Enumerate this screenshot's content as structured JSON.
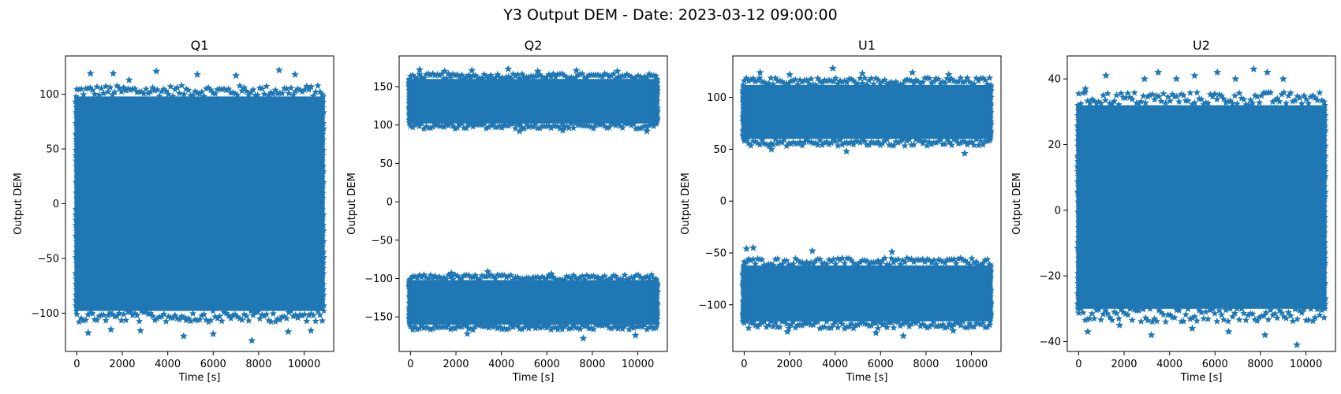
{
  "figure": {
    "title": "Y3 Output DEM - Date: 2023-03-12 09:00:00"
  },
  "chart_data": [
    {
      "type": "scatter",
      "title": "Q1",
      "xlabel": "Time [s]",
      "ylabel": "Output DEM",
      "marker": "star",
      "color": "#1f77b4",
      "xlim": [
        -500,
        11300
      ],
      "ylim": [
        -135,
        135
      ],
      "xticks": [
        0,
        2000,
        4000,
        6000,
        8000,
        10000
      ],
      "yticks": [
        -100,
        -50,
        0,
        50,
        100
      ],
      "grid": false,
      "series": [
        {
          "x_range": [
            0,
            10800
          ],
          "bands": [
            {
              "core": [
                -98,
                98
              ],
              "edge_low": -108,
              "edge_high": 108
            }
          ],
          "outliers": [
            [
              600,
              119
            ],
            [
              1600,
              119
            ],
            [
              2300,
              113
            ],
            [
              3500,
              121
            ],
            [
              5300,
              118
            ],
            [
              7000,
              117
            ],
            [
              8900,
              122
            ],
            [
              9600,
              118
            ],
            [
              500,
              -118
            ],
            [
              1500,
              -115
            ],
            [
              2800,
              -116
            ],
            [
              4700,
              -121
            ],
            [
              6000,
              -119
            ],
            [
              7700,
              -125
            ],
            [
              9300,
              -117
            ],
            [
              10300,
              -116
            ]
          ]
        }
      ]
    },
    {
      "type": "scatter",
      "title": "Q2",
      "xlabel": "Time [s]",
      "ylabel": "Output DEM",
      "marker": "star",
      "color": "#1f77b4",
      "xlim": [
        -500,
        11300
      ],
      "ylim": [
        -195,
        190
      ],
      "xticks": [
        0,
        2000,
        4000,
        6000,
        8000,
        10000
      ],
      "yticks": [
        -150,
        -100,
        -50,
        0,
        50,
        100,
        150
      ],
      "grid": false,
      "series": [
        {
          "x_range": [
            0,
            10800
          ],
          "bands": [
            {
              "core": [
                102,
                160
              ],
              "edge_low": 95,
              "edge_high": 167
            },
            {
              "core": [
                -160,
                -102
              ],
              "edge_low": -167,
              "edge_high": -95
            }
          ],
          "outliers": [
            [
              400,
              172
            ],
            [
              1500,
              170
            ],
            [
              2700,
              171
            ],
            [
              4300,
              173
            ],
            [
              5600,
              170
            ],
            [
              7300,
              171
            ],
            [
              9100,
              170
            ],
            [
              4800,
              92
            ],
            [
              6700,
              93
            ],
            [
              10400,
              92
            ],
            [
              1800,
              -93
            ],
            [
              3400,
              -91
            ],
            [
              6200,
              -94
            ],
            [
              2500,
              -172
            ],
            [
              7600,
              -178
            ],
            [
              9900,
              -174
            ]
          ]
        }
      ]
    },
    {
      "type": "scatter",
      "title": "U1",
      "xlabel": "Time [s]",
      "ylabel": "Output DEM",
      "marker": "star",
      "color": "#1f77b4",
      "xlim": [
        -500,
        11300
      ],
      "ylim": [
        -145,
        140
      ],
      "xticks": [
        0,
        2000,
        4000,
        6000,
        8000,
        10000
      ],
      "yticks": [
        -100,
        -50,
        0,
        50,
        100
      ],
      "grid": false,
      "series": [
        {
          "x_range": [
            0,
            10800
          ],
          "bands": [
            {
              "core": [
                60,
                112
              ],
              "edge_low": 53,
              "edge_high": 119
            },
            {
              "core": [
                -116,
                -62
              ],
              "edge_low": -123,
              "edge_high": -55
            }
          ],
          "outliers": [
            [
              700,
              124
            ],
            [
              2000,
              122
            ],
            [
              3900,
              128
            ],
            [
              5200,
              123
            ],
            [
              7400,
              124
            ],
            [
              9000,
              122
            ],
            [
              1200,
              50
            ],
            [
              4500,
              48
            ],
            [
              9700,
              46
            ],
            [
              100,
              -46
            ],
            [
              400,
              -45
            ],
            [
              3000,
              -48
            ],
            [
              6500,
              -49
            ],
            [
              1900,
              -126
            ],
            [
              5800,
              -127
            ],
            [
              7000,
              -130
            ],
            [
              9200,
              -125
            ]
          ]
        }
      ]
    },
    {
      "type": "scatter",
      "title": "U2",
      "xlabel": "Time [s]",
      "ylabel": "Output DEM",
      "marker": "star",
      "color": "#1f77b4",
      "xlim": [
        -500,
        11300
      ],
      "ylim": [
        -43,
        47
      ],
      "xticks": [
        0,
        2000,
        4000,
        6000,
        8000,
        10000
      ],
      "yticks": [
        -40,
        -20,
        0,
        20,
        40
      ],
      "grid": false,
      "series": [
        {
          "x_range": [
            0,
            10800
          ],
          "bands": [
            {
              "core": [
                -30,
                32
              ],
              "edge_low": -34,
              "edge_high": 36
            }
          ],
          "outliers": [
            [
              300,
              37
            ],
            [
              1200,
              41
            ],
            [
              2900,
              40
            ],
            [
              3500,
              42
            ],
            [
              4300,
              40
            ],
            [
              5100,
              41
            ],
            [
              6100,
              42
            ],
            [
              6900,
              40
            ],
            [
              7700,
              43
            ],
            [
              8300,
              42
            ],
            [
              9000,
              40
            ],
            [
              400,
              -37
            ],
            [
              1800,
              -35
            ],
            [
              3200,
              -38
            ],
            [
              5000,
              -36
            ],
            [
              6600,
              -37
            ],
            [
              8200,
              -38
            ],
            [
              9600,
              -41
            ]
          ]
        }
      ]
    }
  ]
}
